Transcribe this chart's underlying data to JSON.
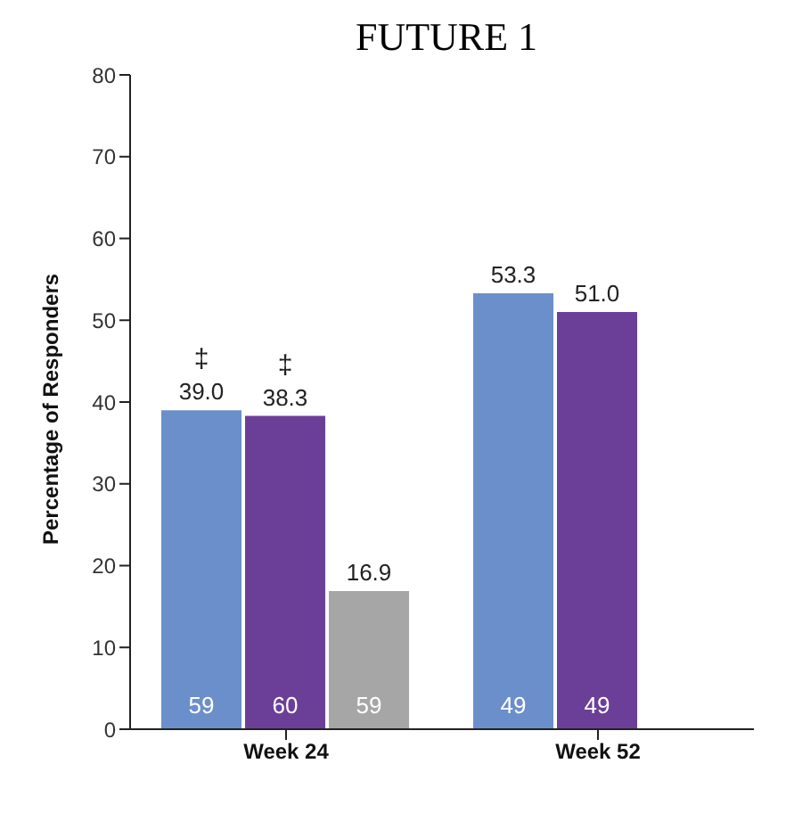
{
  "chart_data": {
    "type": "bar",
    "title": "FUTURE 1",
    "ylabel": "Percentage of Responders",
    "categories": [
      "Week 24",
      "Week 52"
    ],
    "series": [
      {
        "color": "#6a8fcb",
        "values": [
          39.0,
          53.3
        ],
        "value_labels": [
          "39.0",
          "53.3"
        ]
      },
      {
        "color": "#6b3f98",
        "values": [
          38.3,
          51.0
        ],
        "value_labels": [
          "38.3",
          "51.0"
        ]
      },
      {
        "color": "#a6a6a6",
        "values": [
          16.9,
          null
        ],
        "value_labels": [
          "16.9",
          null
        ]
      }
    ],
    "ylim": [
      0,
      80
    ],
    "yticks": [
      0,
      10,
      20,
      30,
      40,
      50,
      60,
      70,
      80
    ],
    "grid": false,
    "legend": false,
    "annotations": [
      "‡",
      "‡",
      "59",
      "60",
      "59",
      "49",
      "49"
    ]
  }
}
